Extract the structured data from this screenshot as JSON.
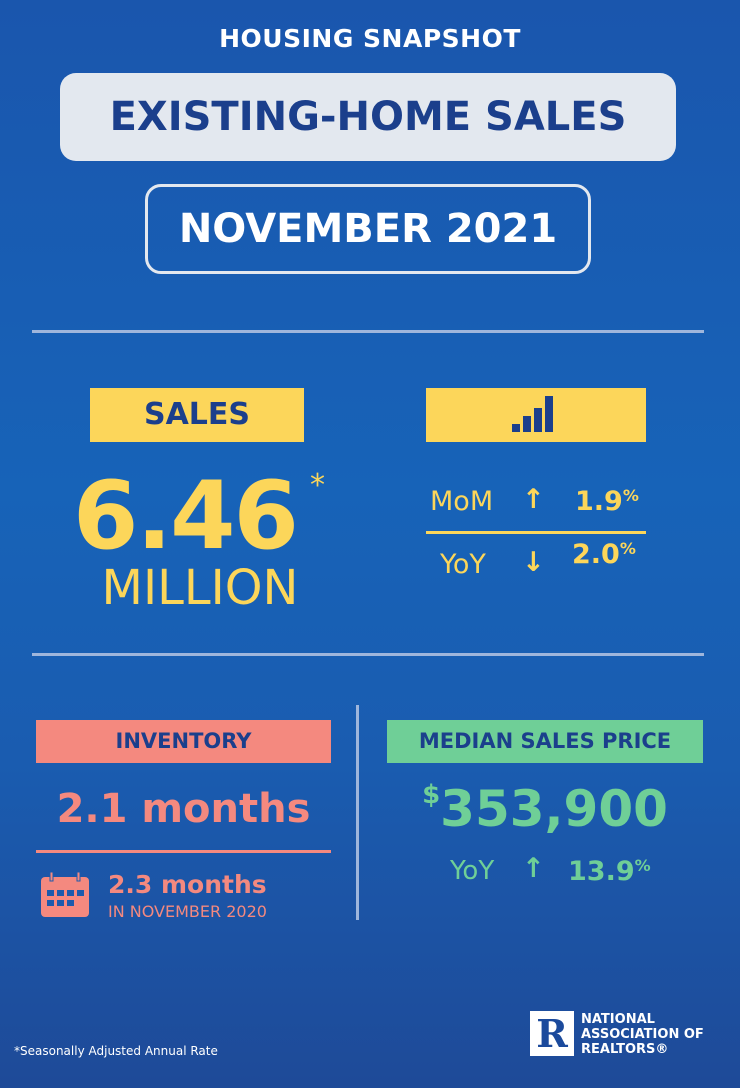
{
  "header": {
    "kicker": "HOUSING SNAPSHOT",
    "title": "EXISTING-HOME SALES",
    "period": "NOVEMBER 2021"
  },
  "sales": {
    "label": "SALES",
    "value": "6.46",
    "asterisk": "*",
    "unit": "MILLION",
    "icon": "bar-chart-icon",
    "mom": {
      "label": "MoM",
      "direction": "up",
      "value": "1.9",
      "pct": "%"
    },
    "yoy": {
      "label": "YoY",
      "direction": "down",
      "value": "2.0",
      "pct": "%"
    }
  },
  "inventory": {
    "label": "INVENTORY",
    "value": "2.1 months",
    "prior_value": "2.3 months",
    "prior_label": "IN NOVEMBER 2020",
    "icon": "calendar-icon"
  },
  "median_price": {
    "label": "MEDIAN SALES PRICE",
    "currency": "$",
    "value": "353,900",
    "yoy": {
      "label": "YoY",
      "direction": "up",
      "value": "13.9",
      "pct": "%"
    }
  },
  "footer": {
    "note": "*Seasonally Adjusted Annual Rate",
    "logo_text": [
      "NATIONAL",
      "ASSOCIATION OF",
      "REALTORS®"
    ],
    "logo_letter": "R"
  },
  "colors": {
    "yellow": "#fcd65a",
    "pink": "#f4897f",
    "green": "#6fcf97",
    "navy": "#1b3f8c",
    "background": "#1763b8"
  }
}
